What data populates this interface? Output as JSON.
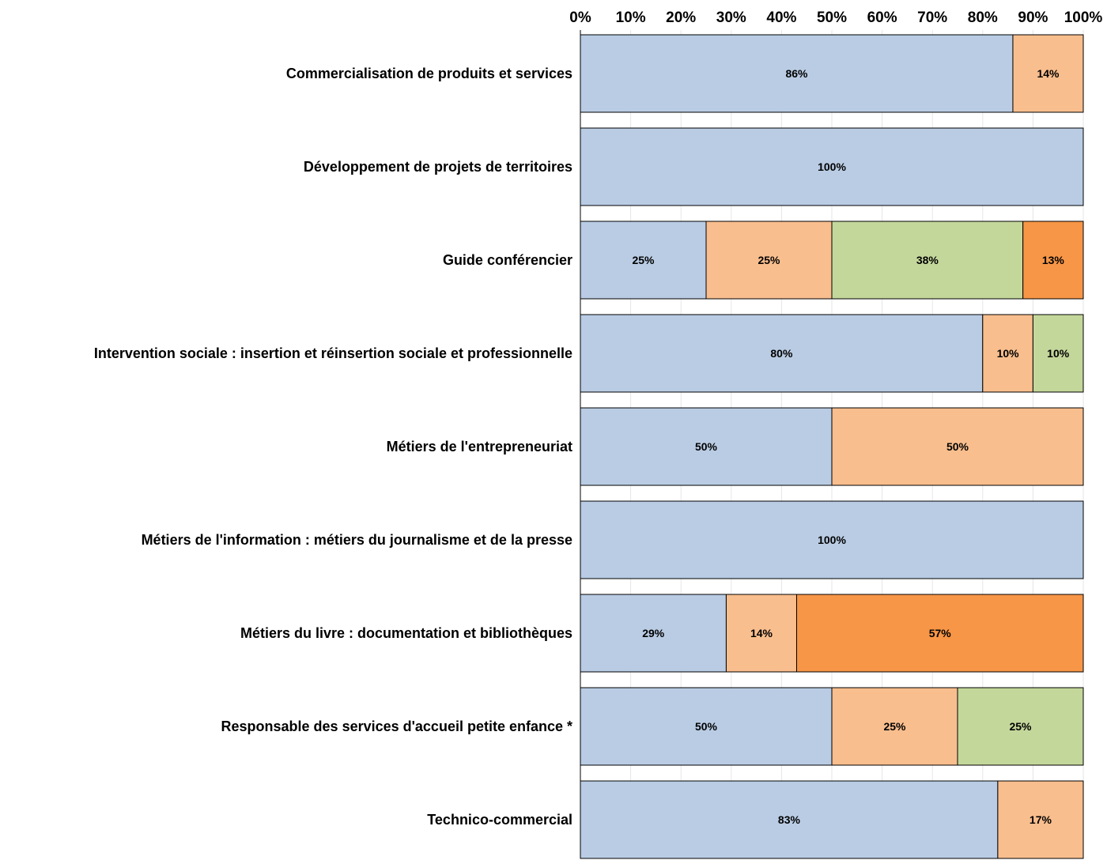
{
  "chart_data": {
    "type": "bar",
    "orientation": "horizontal",
    "stacked": true,
    "percent_stacked": true,
    "xlim": [
      0,
      100
    ],
    "x_ticks": [
      "0%",
      "10%",
      "20%",
      "30%",
      "40%",
      "50%",
      "60%",
      "70%",
      "80%",
      "90%",
      "100%"
    ],
    "x_tick_values": [
      0,
      10,
      20,
      30,
      40,
      50,
      60,
      70,
      80,
      90,
      100
    ],
    "x_axis_position": "top",
    "grid": true,
    "legend": "none",
    "categories": [
      "Commercialisation de produits et services",
      "Développement de projets de territoires",
      "Guide conférencier",
      "Intervention sociale : insertion et réinsertion sociale et professionnelle",
      "Métiers de l'entrepreneuriat",
      "Métiers de l'information : métiers du journalisme et de la presse",
      "Métiers du livre : documentation et bibliothèques",
      "Responsable des services d'accueil petite enfance *",
      "Technico-commercial"
    ],
    "series": [
      {
        "color": "#b9cce4",
        "values": [
          86,
          100,
          25,
          80,
          50,
          100,
          29,
          50,
          83
        ],
        "labels": [
          "86%",
          "100%",
          "25%",
          "80%",
          "50%",
          "100%",
          "29%",
          "50%",
          "83%"
        ]
      },
      {
        "color": "#f9be8e",
        "values": [
          14,
          0,
          25,
          10,
          50,
          0,
          14,
          25,
          17
        ],
        "labels": [
          "14%",
          "",
          "25%",
          "10%",
          "50%",
          "",
          "14%",
          "25%",
          "17%"
        ]
      },
      {
        "color": "#c4d79b",
        "values": [
          0,
          0,
          38,
          10,
          0,
          0,
          0,
          25,
          0
        ],
        "labels": [
          "",
          "",
          "38%",
          "10%",
          "",
          "",
          "",
          "25%",
          ""
        ]
      },
      {
        "color": "#f79646",
        "values": [
          0,
          0,
          13,
          0,
          0,
          0,
          57,
          0,
          0
        ],
        "labels": [
          "",
          "",
          "13%",
          "",
          "",
          "",
          "57%",
          "",
          ""
        ]
      }
    ]
  }
}
